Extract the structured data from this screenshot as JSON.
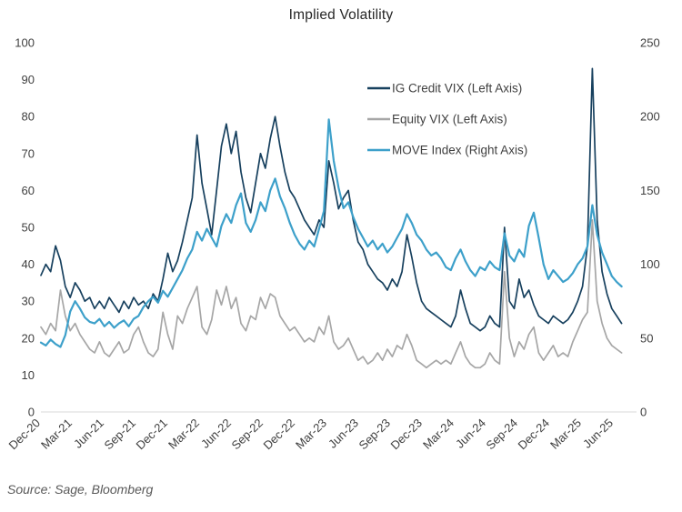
{
  "title": "Implied Volatility",
  "source": "Source: Sage, Bloomberg",
  "chart_data": {
    "type": "line",
    "title": "Implied Volatility",
    "x_labels": [
      "Dec-20",
      "Mar-21",
      "Jun-21",
      "Sep-21",
      "Dec-21",
      "Mar-22",
      "Jun-22",
      "Sep-22",
      "Dec-22",
      "Mar-23",
      "Jun-23",
      "Sep-23",
      "Dec-23",
      "Mar-24",
      "Jun-24",
      "Sep-24",
      "Dec-24",
      "Mar-25",
      "Jun-25"
    ],
    "sampling": "biweekly points from Dec-2020 to Jul-2025",
    "left_axis": {
      "min": 0,
      "max": 100,
      "ticks": [
        0,
        10,
        20,
        30,
        40,
        50,
        60,
        70,
        80,
        90,
        100
      ]
    },
    "right_axis": {
      "min": 0,
      "max": 250,
      "ticks": [
        0,
        50,
        100,
        150,
        200,
        250
      ]
    },
    "grid": "off",
    "legend_position": "inside-top-right",
    "series": [
      {
        "name": "IG Credit VIX (Left Axis)",
        "axis": "left",
        "color": "#17405E",
        "width": 1.7,
        "values": [
          37,
          40,
          38,
          45,
          41,
          34,
          31,
          35,
          33,
          30,
          31,
          28,
          30,
          28,
          31,
          29,
          27,
          30,
          28,
          31,
          29,
          30,
          28,
          32,
          30,
          36,
          43,
          38,
          41,
          46,
          52,
          58,
          75,
          62,
          55,
          48,
          60,
          72,
          78,
          70,
          76,
          65,
          58,
          54,
          62,
          70,
          66,
          74,
          80,
          72,
          65,
          60,
          58,
          55,
          52,
          50,
          48,
          52,
          50,
          68,
          62,
          55,
          58,
          60,
          52,
          46,
          44,
          40,
          38,
          36,
          35,
          33,
          36,
          34,
          38,
          48,
          42,
          35,
          30,
          28,
          27,
          26,
          25,
          24,
          23,
          26,
          33,
          28,
          24,
          23,
          22,
          23,
          26,
          24,
          23,
          50,
          30,
          28,
          36,
          31,
          33,
          29,
          26,
          25,
          24,
          26,
          25,
          24,
          25,
          27,
          30,
          34,
          45,
          93,
          52,
          38,
          32,
          28,
          26,
          24
        ]
      },
      {
        "name": "Equity VIX (Left Axis)",
        "axis": "left",
        "color": "#A6A6A6",
        "width": 1.7,
        "values": [
          23,
          21,
          24,
          22,
          33,
          26,
          22,
          24,
          21,
          19,
          17,
          16,
          19,
          16,
          15,
          17,
          19,
          16,
          17,
          21,
          23,
          19,
          16,
          15,
          17,
          27,
          21,
          17,
          26,
          24,
          28,
          31,
          34,
          23,
          21,
          25,
          33,
          29,
          34,
          28,
          31,
          24,
          22,
          26,
          25,
          31,
          28,
          32,
          31,
          26,
          24,
          22,
          23,
          21,
          19,
          20,
          19,
          23,
          21,
          26,
          19,
          17,
          18,
          20,
          17,
          14,
          15,
          13,
          14,
          16,
          14,
          17,
          15,
          18,
          17,
          21,
          18,
          14,
          13,
          12,
          13,
          14,
          13,
          14,
          13,
          16,
          19,
          15,
          13,
          12,
          12,
          13,
          16,
          14,
          13,
          38,
          20,
          15,
          19,
          17,
          21,
          23,
          16,
          14,
          16,
          18,
          15,
          16,
          15,
          19,
          22,
          25,
          27,
          52,
          30,
          24,
          20,
          18,
          17,
          16
        ]
      },
      {
        "name": "MOVE Index (Right Axis)",
        "axis": "right",
        "color": "#3DA0CA",
        "width": 2.2,
        "values": [
          47,
          45,
          49,
          46,
          44,
          52,
          68,
          75,
          70,
          64,
          61,
          60,
          63,
          58,
          61,
          57,
          60,
          62,
          58,
          63,
          65,
          71,
          75,
          78,
          74,
          82,
          78,
          84,
          90,
          96,
          104,
          110,
          122,
          116,
          124,
          118,
          112,
          126,
          134,
          128,
          140,
          148,
          128,
          122,
          130,
          142,
          136,
          150,
          158,
          146,
          138,
          128,
          120,
          114,
          110,
          116,
          112,
          124,
          136,
          198,
          170,
          152,
          138,
          142,
          132,
          124,
          118,
          112,
          116,
          110,
          114,
          108,
          112,
          118,
          124,
          134,
          128,
          120,
          116,
          110,
          106,
          108,
          104,
          98,
          96,
          104,
          110,
          102,
          96,
          92,
          98,
          96,
          102,
          98,
          96,
          121,
          106,
          102,
          110,
          105,
          126,
          135,
          118,
          100,
          90,
          96,
          92,
          88,
          90,
          94,
          100,
          104,
          112,
          140,
          120,
          108,
          100,
          92,
          88,
          85
        ]
      }
    ]
  }
}
